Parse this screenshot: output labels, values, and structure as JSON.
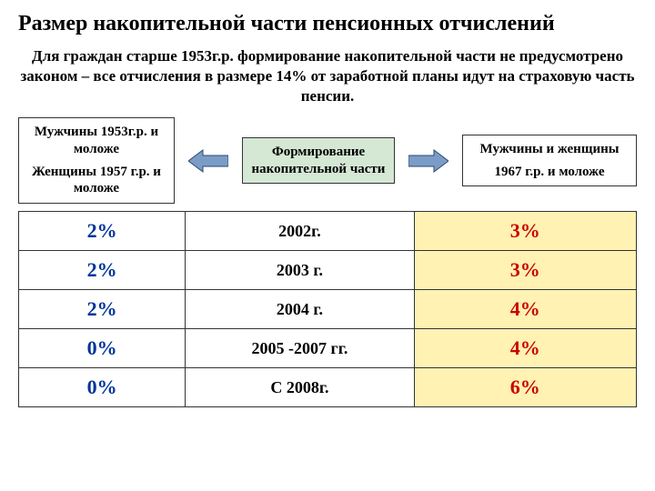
{
  "title": "Размер накопительной части пенсионных отчислений",
  "subtitle": "Для граждан старше 1953г.р. формирование накопительной части не предусмотрено законом – все отчисления в размере 14% от заработной планы идут на страховую часть пенсии.",
  "boxes": {
    "left_line1": "Мужчины   1953г.р. и моложе",
    "left_line2": "Женщины 1957 г.р. и моложе",
    "center": "Формирование накопительной части",
    "right_line1": "Мужчины и женщины",
    "right_line2": "1967 г.р. и моложе"
  },
  "table": {
    "rows": [
      {
        "c1": "2%",
        "c2": "2002г.",
        "c3": "3%"
      },
      {
        "c1": "2%",
        "c2": "2003 г.",
        "c3": "3%"
      },
      {
        "c1": "2%",
        "c2": "2004 г.",
        "c3": "4%"
      },
      {
        "c1": "0%",
        "c2": "2005 -2007 гг.",
        "c3": "4%"
      },
      {
        "c1": "0%",
        "c2": "С 2008г.",
        "c3": "6%"
      }
    ]
  },
  "colors": {
    "blue": "#003399",
    "red": "#cc0000",
    "yellow_bg": "#fff2b3",
    "green_bg": "#d4e8d4",
    "arrow_fill": "#7a9cc6",
    "arrow_stroke": "#2e4a6e"
  }
}
